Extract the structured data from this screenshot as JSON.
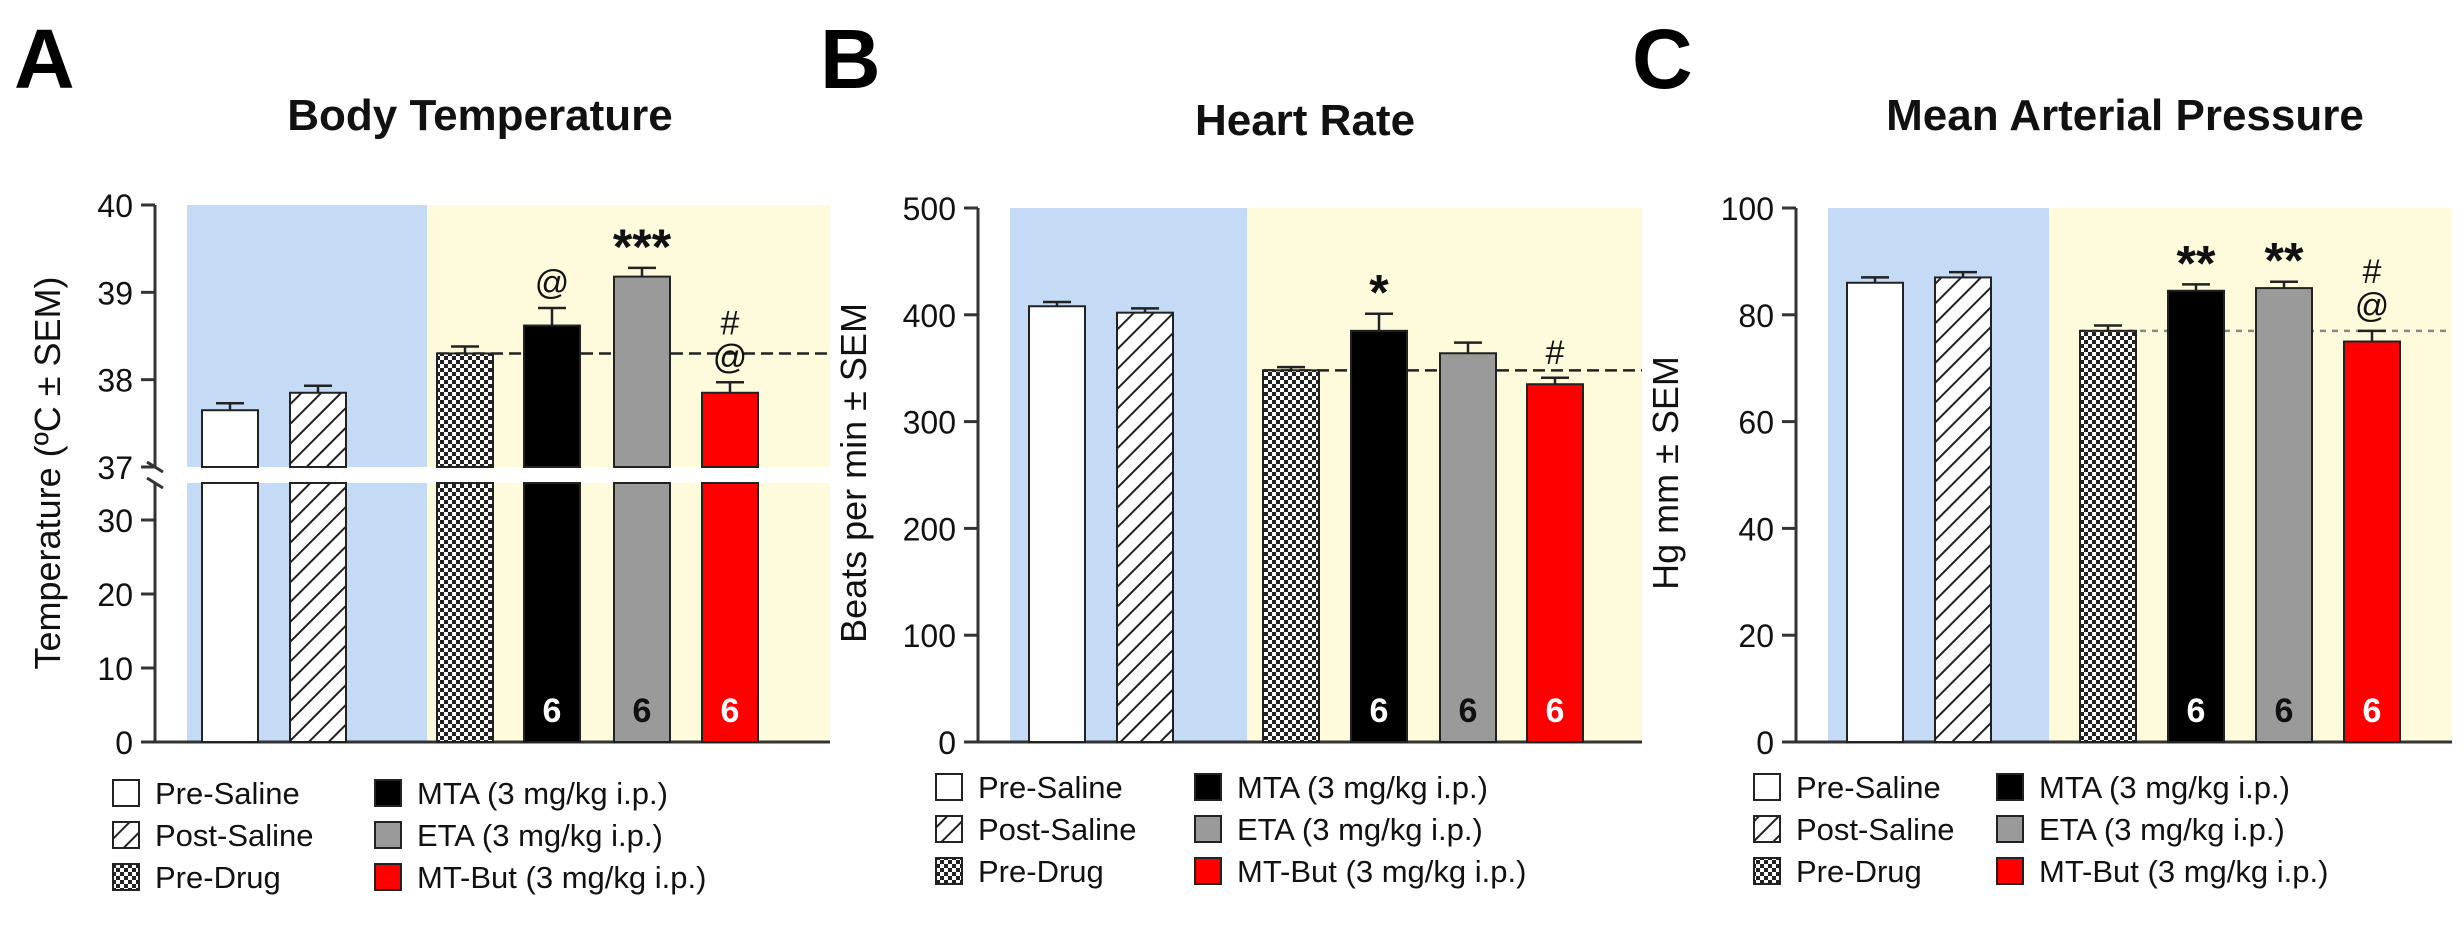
{
  "panels": [
    {
      "id": "temp",
      "letter": "A",
      "title": "Body Temperature",
      "ylabel": "Temperature (ºC ± SEM)",
      "axis_break": true,
      "upper_ticks": [
        "37",
        "38",
        "39",
        "40"
      ],
      "lower_ticks": [
        "0",
        "10",
        "20",
        "30"
      ],
      "ticks": [],
      "reference_value": 38.3,
      "legend_saline": [
        "Pre-Saline",
        "Post-Saline",
        "Pre-Drug"
      ],
      "legend_drug": [
        "MTA (3 mg/kg i.p.)",
        "ETA (3 mg/kg i.p.)",
        "MT-But (3 mg/kg i.p.)"
      ],
      "bars": [
        {
          "label": "Pre-Saline",
          "value": 37.65,
          "sem": 0.08,
          "style": "white",
          "sig": [],
          "n": ""
        },
        {
          "label": "Post-Saline",
          "value": 37.85,
          "sem": 0.08,
          "style": "hatch",
          "sig": [],
          "n": ""
        },
        {
          "label": "Pre-Drug",
          "value": 38.3,
          "sem": 0.08,
          "style": "check",
          "sig": [],
          "n": ""
        },
        {
          "label": "MTA (3 mg/kg i.p.)",
          "value": 38.62,
          "sem": 0.2,
          "style": "black",
          "sig": [
            "@"
          ],
          "n": "6"
        },
        {
          "label": "ETA (3 mg/kg i.p.)",
          "value": 39.18,
          "sem": 0.1,
          "style": "gray",
          "sig": [
            "***"
          ],
          "n": "6"
        },
        {
          "label": "MT-But (3 mg/kg i.p.)",
          "value": 37.85,
          "sem": 0.12,
          "style": "red",
          "sig": [
            "@",
            "#"
          ],
          "n": "6"
        }
      ]
    },
    {
      "id": "hr",
      "letter": "B",
      "title": "Heart Rate",
      "ylabel": "Beats per min ± SEM",
      "axis_break": false,
      "ticks": [
        "0",
        "100",
        "200",
        "300",
        "400",
        "500"
      ],
      "ylim": [
        0,
        500
      ],
      "reference_value": 348,
      "legend_saline": [
        "Pre-Saline",
        "Post-Saline",
        "Pre-Drug"
      ],
      "legend_drug": [
        "MTA (3 mg/kg i.p.)",
        "ETA (3 mg/kg i.p.)",
        "MT-But (3 mg/kg i.p.)"
      ],
      "bars": [
        {
          "label": "Pre-Saline",
          "value": 408,
          "sem": 4,
          "style": "white",
          "sig": [],
          "n": ""
        },
        {
          "label": "Post-Saline",
          "value": 402,
          "sem": 4,
          "style": "hatch",
          "sig": [],
          "n": ""
        },
        {
          "label": "Pre-Drug",
          "value": 348,
          "sem": 3,
          "style": "check",
          "sig": [],
          "n": ""
        },
        {
          "label": "MTA (3 mg/kg i.p.)",
          "value": 385,
          "sem": 16,
          "style": "black",
          "sig": [
            "*"
          ],
          "n": "6"
        },
        {
          "label": "ETA (3 mg/kg i.p.)",
          "value": 364,
          "sem": 10,
          "style": "gray",
          "sig": [],
          "n": "6"
        },
        {
          "label": "MT-But (3 mg/kg i.p.)",
          "value": 335,
          "sem": 6,
          "style": "red",
          "sig": [
            "#"
          ],
          "n": "6"
        }
      ]
    },
    {
      "id": "map",
      "letter": "C",
      "title": "Mean Arterial Pressure",
      "ylabel": "Hg mm ± SEM",
      "axis_break": false,
      "ticks": [
        "0",
        "20",
        "40",
        "60",
        "80",
        "100"
      ],
      "ylim": [
        0,
        100
      ],
      "reference_value": 77,
      "legend_saline": [
        "Pre-Saline",
        "Post-Saline",
        "Pre-Drug"
      ],
      "legend_drug": [
        "MTA (3 mg/kg i.p.)",
        "ETA (3 mg/kg i.p.)",
        "MT-But (3 mg/kg i.p.)"
      ],
      "bars": [
        {
          "label": "Pre-Saline",
          "value": 86,
          "sem": 1,
          "style": "white",
          "sig": [],
          "n": ""
        },
        {
          "label": "Post-Saline",
          "value": 87,
          "sem": 1,
          "style": "hatch",
          "sig": [],
          "n": ""
        },
        {
          "label": "Pre-Drug",
          "value": 77,
          "sem": 1,
          "style": "check",
          "sig": [],
          "n": ""
        },
        {
          "label": "MTA (3 mg/kg i.p.)",
          "value": 84.5,
          "sem": 1.2,
          "style": "black",
          "sig": [
            "**"
          ],
          "n": "6"
        },
        {
          "label": "ETA (3 mg/kg i.p.)",
          "value": 85,
          "sem": 1.2,
          "style": "gray",
          "sig": [
            "**"
          ],
          "n": "6"
        },
        {
          "label": "MT-But (3 mg/kg i.p.)",
          "value": 75,
          "sem": 2,
          "style": "red",
          "sig": [
            "@",
            "#"
          ],
          "n": "6"
        }
      ]
    }
  ],
  "chart_data": [
    {
      "type": "bar",
      "title": "Body Temperature",
      "ylabel": "Temperature (ºC ± SEM)",
      "categories": [
        "Pre-Saline",
        "Post-Saline",
        "Pre-Drug",
        "MTA (3 mg/kg i.p.)",
        "ETA (3 mg/kg i.p.)",
        "MT-But (3 mg/kg i.p.)"
      ],
      "values": [
        37.65,
        37.85,
        38.3,
        38.62,
        39.18,
        37.85
      ],
      "sem": [
        0.08,
        0.08,
        0.08,
        0.2,
        0.1,
        0.12
      ],
      "ylim": [
        0,
        40
      ],
      "axis_break": [
        30,
        37
      ],
      "n": [
        "",
        "",
        "",
        "6",
        "6",
        "6"
      ]
    },
    {
      "type": "bar",
      "title": "Heart Rate",
      "ylabel": "Beats per min ± SEM",
      "categories": [
        "Pre-Saline",
        "Post-Saline",
        "Pre-Drug",
        "MTA (3 mg/kg i.p.)",
        "ETA (3 mg/kg i.p.)",
        "MT-But (3 mg/kg i.p.)"
      ],
      "values": [
        408,
        402,
        348,
        385,
        364,
        335
      ],
      "sem": [
        4,
        4,
        3,
        16,
        10,
        6
      ],
      "ylim": [
        0,
        500
      ],
      "n": [
        "",
        "",
        "",
        "6",
        "6",
        "6"
      ]
    },
    {
      "type": "bar",
      "title": "Mean Arterial Pressure",
      "ylabel": "Hg mm ± SEM",
      "categories": [
        "Pre-Saline",
        "Post-Saline",
        "Pre-Drug",
        "MTA (3 mg/kg i.p.)",
        "ETA (3 mg/kg i.p.)",
        "MT-But (3 mg/kg i.p.)"
      ],
      "values": [
        86,
        87,
        77,
        84.5,
        85,
        75
      ],
      "sem": [
        1,
        1,
        1,
        1.2,
        1.2,
        2
      ],
      "ylim": [
        0,
        100
      ],
      "n": [
        "",
        "",
        "",
        "6",
        "6",
        "6"
      ]
    }
  ],
  "colors": {
    "saline_background": "#c5dbf5",
    "drug_background": "#fefbdc",
    "mta": "#000000",
    "eta": "#9a9a9a",
    "mt_but": "#ff0000"
  }
}
